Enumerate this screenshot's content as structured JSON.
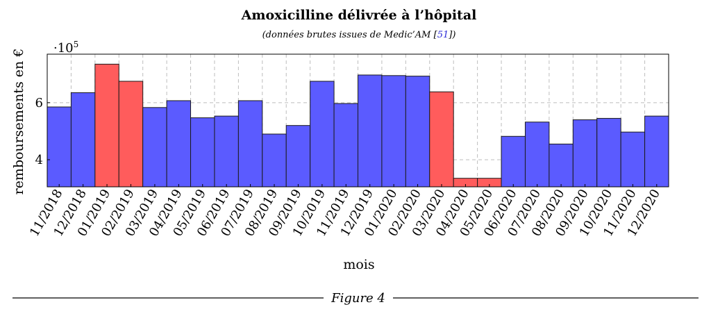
{
  "chart_data": {
    "type": "bar",
    "title": "Amoxicilline délivrée à l’hôpital",
    "subtitle_prefix": "(données brutes issues de Medic’AM [",
    "subtitle_ref": "51",
    "subtitle_suffix": "])",
    "xlabel": "mois",
    "ylabel": "remboursements en €",
    "y_scale_label": "·10",
    "y_scale_exponent": "5",
    "ylim": [
      3.05,
      7.7
    ],
    "yticks": [
      4,
      6
    ],
    "ytick_labels": [
      "4",
      "6"
    ],
    "grid": true,
    "colors": {
      "normal": "#5b5bff",
      "highlight": "#ff5c5c",
      "grid": "#bdbdbd"
    },
    "categories": [
      "11/2018",
      "12/2018",
      "01/2019",
      "02/2019",
      "03/2019",
      "04/2019",
      "05/2019",
      "06/2019",
      "07/2019",
      "08/2019",
      "09/2019",
      "10/2019",
      "11/2019",
      "12/2019",
      "01/2020",
      "02/2020",
      "03/2020",
      "04/2020",
      "05/2020",
      "06/2020",
      "07/2020",
      "08/2020",
      "09/2020",
      "10/2020",
      "11/2020",
      "12/2020"
    ],
    "values": [
      5.85,
      6.35,
      7.35,
      6.75,
      5.83,
      6.07,
      5.47,
      5.53,
      6.07,
      4.9,
      5.2,
      6.75,
      5.97,
      6.97,
      6.95,
      6.93,
      6.38,
      3.35,
      3.35,
      4.82,
      5.32,
      4.55,
      5.4,
      5.45,
      4.97,
      5.53
    ],
    "highlighted": [
      false,
      false,
      true,
      true,
      false,
      false,
      false,
      false,
      false,
      false,
      false,
      false,
      false,
      false,
      false,
      false,
      true,
      true,
      true,
      false,
      false,
      false,
      false,
      false,
      false,
      false
    ]
  },
  "caption": "Figure 4"
}
